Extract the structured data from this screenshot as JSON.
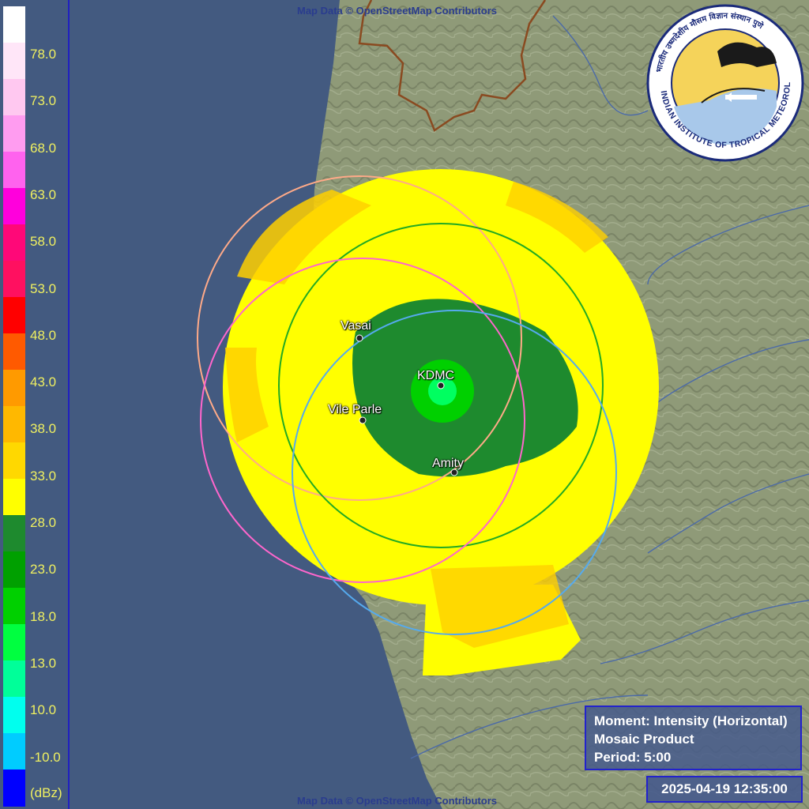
{
  "legend": {
    "unit": "(dBz)",
    "labels": [
      "78.0",
      "73.0",
      "68.0",
      "63.0",
      "58.0",
      "53.0",
      "48.0",
      "43.0",
      "38.0",
      "33.0",
      "28.0",
      "23.0",
      "18.0",
      "13.0",
      "10.0",
      "-10.0"
    ],
    "colors": [
      "#ffffff",
      "#ffe6f8",
      "#ffc8f0",
      "#ff9cf0",
      "#ff62ee",
      "#ff00dc",
      "#ff0878",
      "#ff1060",
      "#ff0000",
      "#ff5a00",
      "#ff9a00",
      "#ffb800",
      "#ffd800",
      "#ffff00",
      "#1e8a2e",
      "#00a000",
      "#00d000",
      "#00ff40",
      "#00ff99",
      "#00ffee",
      "#00ccff",
      "#0000ff"
    ]
  },
  "attribution": {
    "top": "Map Data © OpenStreetMap Contributors",
    "bottom": "Map Data © OpenStreetMap Contributors"
  },
  "sites": [
    {
      "name": "Vasai",
      "color": "#ffaa88"
    },
    {
      "name": "KDMC",
      "color": "#22aa22"
    },
    {
      "name": "Vile Parle",
      "color": "#ff66cc"
    },
    {
      "name": "Amity",
      "color": "#55aaee"
    }
  ],
  "info": {
    "moment": "Moment: Intensity (Horizontal)",
    "product": "Mosaic Product",
    "period": "Period: 5:00"
  },
  "timestamp": "2025-04-19 12:35:00",
  "logo": {
    "text": "INDIAN INSTITUTE OF TROPICAL METEOROLOGY PUNE",
    "hindi": "भारतीय उष्णदेशीय मौसम विज्ञान संस्थान पुणे"
  },
  "colors": {
    "sea": "#435a80",
    "land": "#8f9a78",
    "echo_yellow": "#ffff00",
    "echo_orange": "#ffd000",
    "echo_green": "#1e8a2e",
    "echo_core": "#00e060",
    "frame_border": "#2222cc"
  }
}
